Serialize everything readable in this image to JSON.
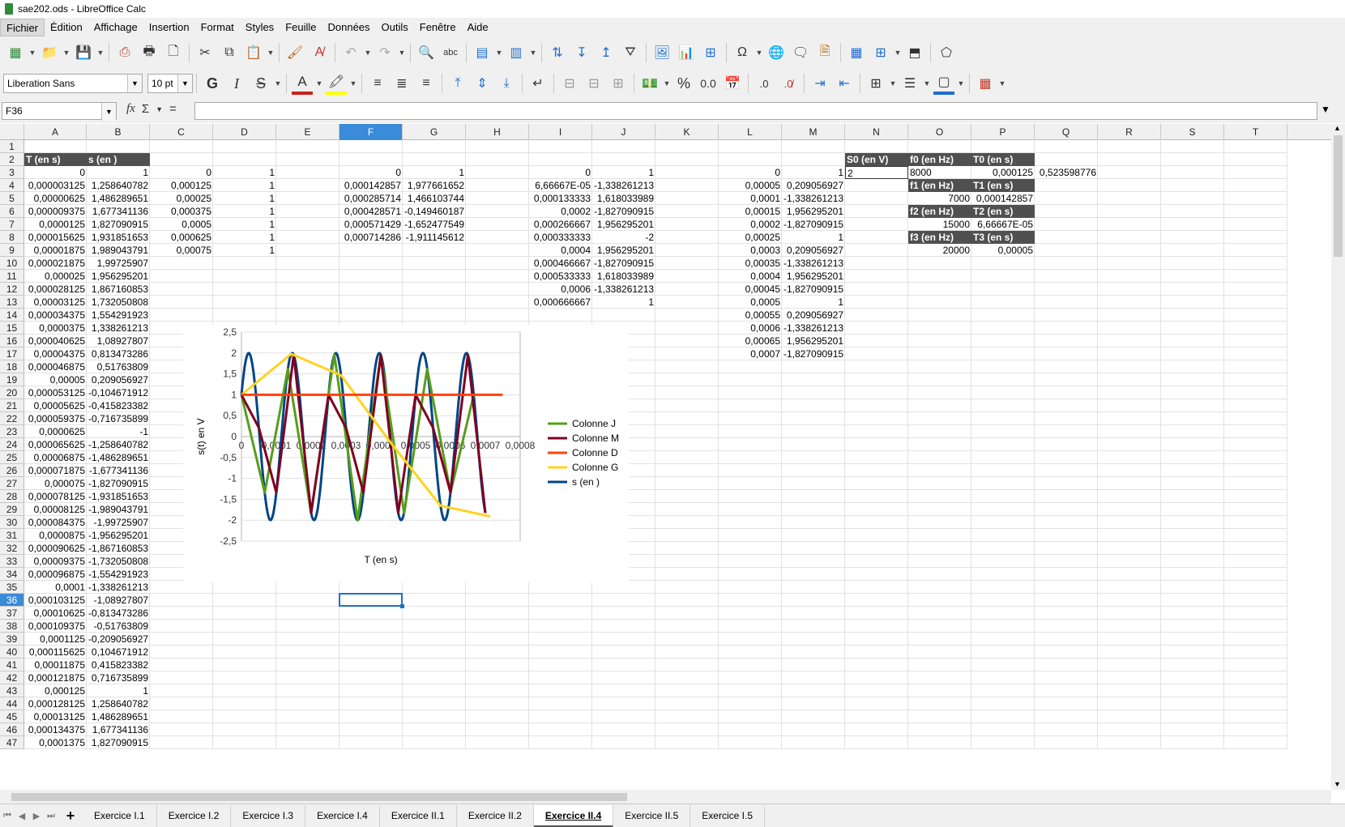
{
  "window": {
    "title": "sae202.ods - LibreOffice Calc"
  },
  "menu": [
    "Fichier",
    "Édition",
    "Affichage",
    "Insertion",
    "Format",
    "Styles",
    "Feuille",
    "Données",
    "Outils",
    "Fenêtre",
    "Aide"
  ],
  "format_bar": {
    "font_name": "Liberation Sans",
    "font_size": "10 pt",
    "bold": "G",
    "italic": "I",
    "strike": "S",
    "percent": "%",
    "number": "0.0"
  },
  "formula_bar": {
    "cell_ref": "F36",
    "fx": "fx",
    "sum": "Σ",
    "equals": "=",
    "content": ""
  },
  "columns": [
    "A",
    "B",
    "C",
    "D",
    "E",
    "F",
    "G",
    "H",
    "I",
    "J",
    "K",
    "L",
    "M",
    "N",
    "O",
    "P",
    "Q",
    "R",
    "S",
    "T"
  ],
  "selected_column": "F",
  "selected_row": 36,
  "rows_visible": 47,
  "cells": {
    "A2": "T (en s)",
    "B2": "s (en )",
    "A3": "0",
    "B3": "1",
    "C3": "0",
    "D3": "1",
    "F3": "0",
    "G3": "1",
    "I3": "0",
    "J3": "1",
    "L3": "0",
    "M3": "1",
    "A4": "0,000003125",
    "B4": "1,258640782",
    "C4": "0,000125",
    "D4": "1",
    "F4": "0,000142857",
    "G4": "1,977661652",
    "I4": "6,66667E-05",
    "J4": "-1,338261213",
    "L4": "0,00005",
    "M4": "0,209056927",
    "A5": "0,00000625",
    "B5": "1,486289651",
    "C5": "0,00025",
    "D5": "1",
    "F5": "0,000285714",
    "G5": "1,466103744",
    "I5": "0,000133333",
    "J5": "1,618033989",
    "L5": "0,0001",
    "M5": "-1,338261213",
    "A6": "0,000009375",
    "B6": "1,677341136",
    "C6": "0,000375",
    "D6": "1",
    "F6": "0,000428571",
    "G6": "-0,149460187",
    "I6": "0,0002",
    "J6": "-1,827090915",
    "L6": "0,00015",
    "M6": "1,956295201",
    "A7": "0,0000125",
    "B7": "1,827090915",
    "C7": "0,0005",
    "D7": "1",
    "F7": "0,000571429",
    "G7": "-1,652477549",
    "I7": "0,000266667",
    "J7": "1,956295201",
    "L7": "0,0002",
    "M7": "-1,827090915",
    "A8": "0,000015625",
    "B8": "1,931851653",
    "C8": "0,000625",
    "D8": "1",
    "F8": "0,000714286",
    "G8": "-1,911145612",
    "I8": "0,000333333",
    "J8": "-2",
    "L8": "0,00025",
    "M8": "1",
    "A9": "0,00001875",
    "B9": "1,989043791",
    "C9": "0,00075",
    "D9": "1",
    "I9": "0,0004",
    "J9": "1,956295201",
    "L9": "0,0003",
    "M9": "0,209056927",
    "A10": "0,000021875",
    "B10": "1,99725907",
    "I10": "0,000466667",
    "J10": "-1,827090915",
    "L10": "0,00035",
    "M10": "-1,338261213",
    "A11": "0,000025",
    "B11": "1,956295201",
    "I11": "0,000533333",
    "J11": "1,618033989",
    "L11": "0,0004",
    "M11": "1,956295201",
    "A12": "0,000028125",
    "B12": "1,867160853",
    "I12": "0,0006",
    "J12": "-1,338261213",
    "L12": "0,00045",
    "M12": "-1,827090915",
    "A13": "0,00003125",
    "B13": "1,732050808",
    "I13": "0,000666667",
    "J13": "1",
    "L13": "0,0005",
    "M13": "1",
    "A14": "0,000034375",
    "B14": "1,554291923",
    "L14": "0,00055",
    "M14": "0,209056927",
    "A15": "0,0000375",
    "B15": "1,338261213",
    "L15": "0,0006",
    "M15": "-1,338261213",
    "A16": "0,000040625",
    "B16": "1,08927807",
    "L16": "0,00065",
    "M16": "1,956295201",
    "A17": "0,00004375",
    "B17": "0,813473286",
    "L17": "0,0007",
    "M17": "-1,827090915",
    "A18": "0,000046875",
    "B18": "0,51763809",
    "A19": "0,00005",
    "B19": "0,209056927",
    "A20": "0,000053125",
    "B20": "-0,104671912",
    "A21": "0,00005625",
    "B21": "-0,415823382",
    "A22": "0,000059375",
    "B22": "-0,716735899",
    "A23": "0,0000625",
    "B23": "-1",
    "A24": "0,000065625",
    "B24": "-1,258640782",
    "A25": "0,00006875",
    "B25": "-1,486289651",
    "A26": "0,000071875",
    "B26": "-1,677341136",
    "A27": "0,000075",
    "B27": "-1,827090915",
    "A28": "0,000078125",
    "B28": "-1,931851653",
    "A29": "0,00008125",
    "B29": "-1,989043791",
    "A30": "0,000084375",
    "B30": "-1,99725907",
    "A31": "0,0000875",
    "B31": "-1,956295201",
    "A32": "0,000090625",
    "B32": "-1,867160853",
    "A33": "0,00009375",
    "B33": "-1,732050808",
    "A34": "0,000096875",
    "B34": "-1,554291923",
    "A35": "0,0001",
    "B35": "-1,338261213",
    "A36": "0,000103125",
    "B36": "-1,08927807",
    "A37": "0,00010625",
    "B37": "-0,813473286",
    "A38": "0,000109375",
    "B38": "-0,51763809",
    "A39": "0,0001125",
    "B39": "-0,209056927",
    "A40": "0,000115625",
    "B40": "0,104671912",
    "A41": "0,00011875",
    "B41": "0,415823382",
    "A42": "0,000121875",
    "B42": "0,716735899",
    "A43": "0,000125",
    "B43": "1",
    "A44": "0,000128125",
    "B44": "1,258640782",
    "A45": "0,00013125",
    "B45": "1,486289651",
    "A46": "0,000134375",
    "B46": "1,677341136",
    "A47": "0,0001375",
    "B47": "1,827090915",
    "N2": "S0 (en V)",
    "O2": "f0 (en Hz)",
    "P2": "T0 (en s)",
    "N3": "2",
    "O3": "8000",
    "P3": "0,000125",
    "Q3": "0,523598776",
    "O4": "f1 (en Hz)",
    "P4": "T1 (en s)",
    "O5": "7000",
    "P5": "0,000142857",
    "O6": "f2 (en Hz)",
    "P6": "T2 (en s)",
    "O7": "15000",
    "P7": "6,66667E-05",
    "O8": "f3 (en Hz)",
    "P8": "T3 (en s)",
    "O9": "20000",
    "P9": "0,00005"
  },
  "chart_data": {
    "type": "line",
    "xlabel": "T (en s)",
    "ylabel": "s(t) en V",
    "xlim": [
      0,
      0.0008
    ],
    "ylim": [
      -2.5,
      2.5
    ],
    "x_ticks": [
      "0",
      "0,0001",
      "0,0002",
      "0,0003",
      "0,0004",
      "0,0005",
      "0,0006",
      "0,0007",
      "0,0008"
    ],
    "y_ticks": [
      "2,5",
      "2",
      "1,5",
      "1",
      "0,5",
      "0",
      "-0,5",
      "-1",
      "-1,5",
      "-2",
      "-2,5"
    ],
    "legend_position": "right",
    "series": [
      {
        "name": "Colonne J",
        "color": "#579d1c",
        "x": [
          0,
          6.66667e-05,
          0.000133333,
          0.0002,
          0.000266667,
          0.000333333,
          0.0004,
          0.000466667,
          0.000533333,
          0.0006,
          0.000666667
        ],
        "y": [
          1,
          -1.338261213,
          1.618033989,
          -1.827090915,
          1.956295201,
          -2,
          1.956295201,
          -1.827090915,
          1.618033989,
          -1.338261213,
          1
        ]
      },
      {
        "name": "Colonne M",
        "color": "#7e0021",
        "x": [
          0,
          5e-05,
          0.0001,
          0.00015,
          0.0002,
          0.00025,
          0.0003,
          0.00035,
          0.0004,
          0.00045,
          0.0005,
          0.00055,
          0.0006,
          0.00065,
          0.0007
        ],
        "y": [
          1,
          0.209056927,
          -1.338261213,
          1.956295201,
          -1.827090915,
          1,
          0.209056927,
          -1.338261213,
          1.956295201,
          -1.827090915,
          1,
          0.209056927,
          -1.338261213,
          1.956295201,
          -1.827090915
        ]
      },
      {
        "name": "Colonne D",
        "color": "#ff420e",
        "x": [
          0,
          0.000125,
          0.00025,
          0.000375,
          0.0005,
          0.000625,
          0.00075
        ],
        "y": [
          1,
          1,
          1,
          1,
          1,
          1,
          1
        ]
      },
      {
        "name": "Colonne G",
        "color": "#ffd320",
        "x": [
          0,
          0.000142857,
          0.000285714,
          0.000428571,
          0.000571429,
          0.000714286
        ],
        "y": [
          1,
          1.977661652,
          1.466103744,
          -0.149460187,
          -1.652477549,
          -1.911145612
        ]
      },
      {
        "name": "s (en )",
        "color": "#004586",
        "x": [],
        "y": []
      }
    ]
  },
  "sheet_tabs": [
    "Exercice I.1",
    "Exercice I.2",
    "Exercice I.3",
    "Exercice I.4",
    "Exercice II.1",
    "Exercice II.2",
    "Exercice II.4",
    "Exercice II.5",
    "Exercice I.5"
  ],
  "active_tab": "Exercice II.4",
  "colors": {
    "header_dark": "#505050",
    "selection_blue": "#3a8bd9",
    "chrome": "#f0f0f0"
  }
}
